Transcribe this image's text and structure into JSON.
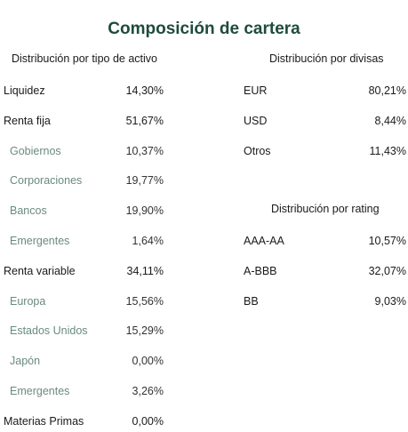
{
  "title": "Composición de cartera",
  "asset_distribution": {
    "heading": "Distribución por tipo de activo",
    "rows": [
      {
        "label": "Liquidez",
        "value": "14,30%",
        "sub": false
      },
      {
        "label": "Renta fija",
        "value": "51,67%",
        "sub": false
      },
      {
        "label": "Gobiernos",
        "value": "10,37%",
        "sub": true
      },
      {
        "label": "Corporaciones",
        "value": "19,77%",
        "sub": true
      },
      {
        "label": "Bancos",
        "value": "19,90%",
        "sub": true
      },
      {
        "label": "Emergentes",
        "value": "1,64%",
        "sub": true
      },
      {
        "label": "Renta variable",
        "value": "34,11%",
        "sub": false
      },
      {
        "label": "Europa",
        "value": "15,56%",
        "sub": true
      },
      {
        "label": "Estados Unidos",
        "value": "15,29%",
        "sub": true
      },
      {
        "label": "Japón",
        "value": "0,00%",
        "sub": true
      },
      {
        "label": "Emergentes",
        "value": "3,26%",
        "sub": true
      },
      {
        "label": "Materias Primas",
        "value": "0,00%",
        "sub": false
      }
    ]
  },
  "currency_distribution": {
    "heading": "Distribución por divisas",
    "rows": [
      {
        "label": "EUR",
        "value": "80,21%"
      },
      {
        "label": "USD",
        "value": "8,44%"
      },
      {
        "label": "Otros",
        "value": "11,43%"
      }
    ]
  },
  "rating_distribution": {
    "heading": "Distribución por rating",
    "rows": [
      {
        "label": "AAA-AA",
        "value": "10,57%"
      },
      {
        "label": "A-BBB",
        "value": "32,07%"
      },
      {
        "label": "BB",
        "value": "9,03%"
      }
    ]
  }
}
